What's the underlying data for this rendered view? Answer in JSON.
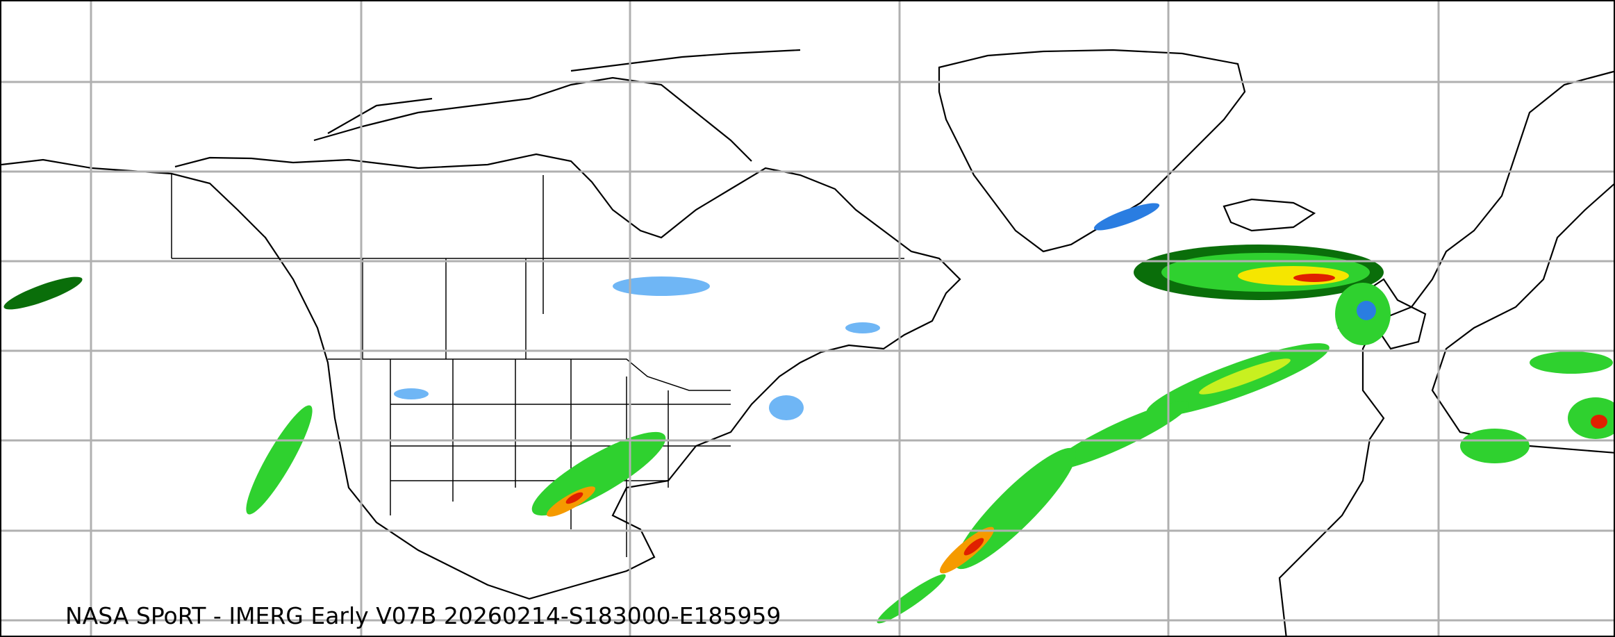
{
  "caption": "NASA SPoRT - IMERG Early V07B 20260214-S183000-E185959",
  "colors": {
    "gridline": "#b0b0b0",
    "coastline": "#000000",
    "precip_light_blue": "#6fb6f5",
    "precip_blue": "#2a7de1",
    "precip_dark_green": "#0a6e0a",
    "precip_green": "#2fd12f",
    "precip_yellow_green": "#c8f020",
    "precip_yellow": "#f5e600",
    "precip_orange": "#f59a00",
    "precip_red": "#e02000"
  }
}
